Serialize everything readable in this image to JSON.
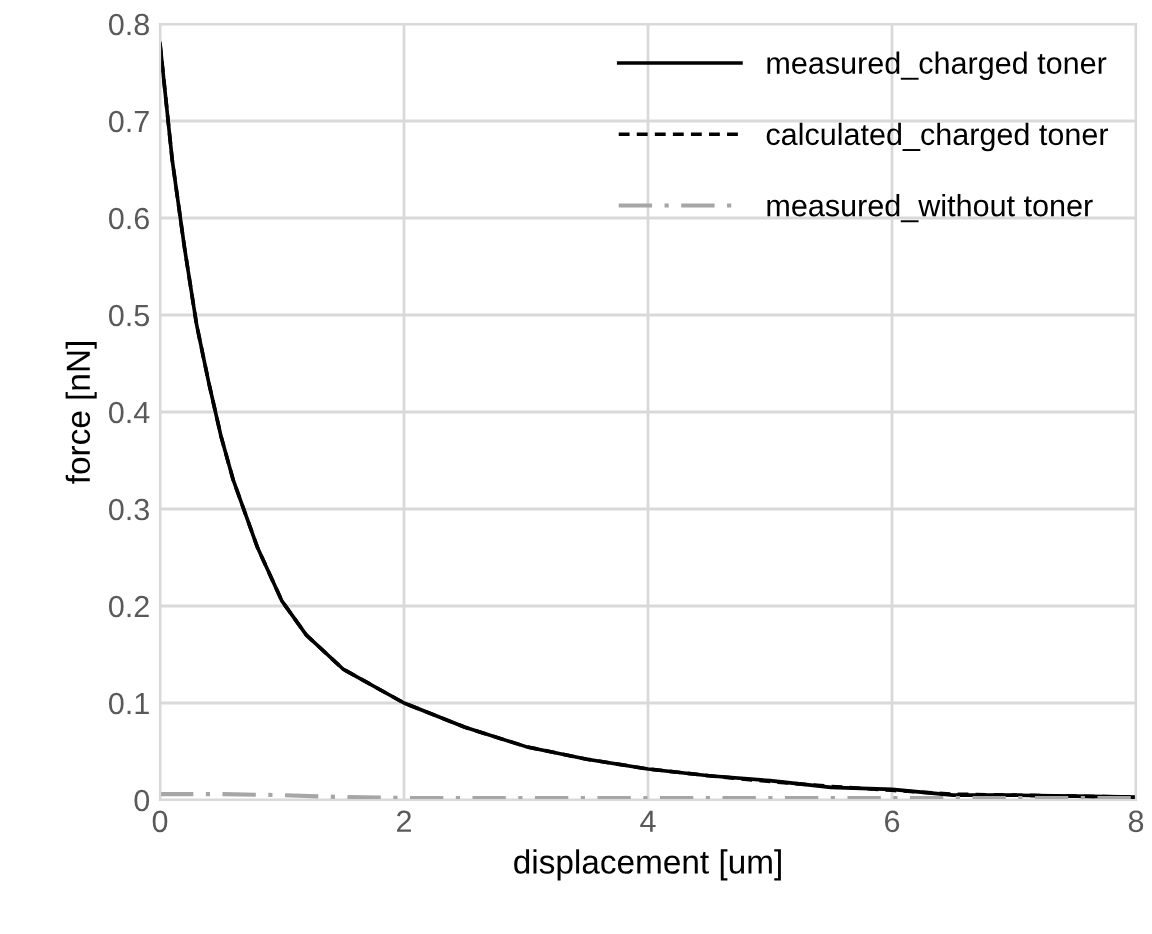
{
  "chart_data": {
    "type": "line",
    "xlabel": "displacement [um]",
    "ylabel": "force [nN]",
    "xlim": [
      0,
      8
    ],
    "ylim": [
      0,
      0.8
    ],
    "xticks": [
      0,
      2,
      4,
      6,
      8
    ],
    "yticks": [
      0,
      0.1,
      0.2,
      0.3,
      0.4,
      0.5,
      0.6,
      0.7,
      0.8
    ],
    "grid": true,
    "legend": "top right",
    "marker": "none",
    "x": [
      0,
      0.1,
      0.2,
      0.3,
      0.4,
      0.5,
      0.6,
      0.7,
      0.8,
      1.0,
      1.2,
      1.5,
      2,
      2.5,
      3,
      3.5,
      4,
      4.5,
      5,
      5.5,
      6,
      6.5,
      7,
      7.5,
      8
    ],
    "series": [
      {
        "name": "measured_charged toner",
        "color": "#000000",
        "line_style": "solid",
        "values": [
          0.78,
          0.66,
          0.57,
          0.49,
          0.43,
          0.375,
          0.33,
          0.295,
          0.26,
          0.205,
          0.17,
          0.135,
          0.1,
          0.075,
          0.055,
          0.042,
          0.032,
          0.025,
          0.02,
          0.013,
          0.011,
          0.005,
          0.005,
          0.004,
          0.003
        ]
      },
      {
        "name": "calculated_charged toner",
        "color": "#000000",
        "line_style": "dashed",
        "values": [
          0.78,
          0.66,
          0.57,
          0.49,
          0.43,
          0.375,
          0.33,
          0.295,
          0.26,
          0.205,
          0.17,
          0.135,
          0.1,
          0.075,
          0.055,
          0.042,
          0.032,
          0.025,
          0.019,
          0.014,
          0.01,
          0.006,
          0.005,
          0.004,
          0.003
        ]
      },
      {
        "name": "measured_without toner",
        "color": "#a6a6a6",
        "line_style": "dashdot",
        "x": [
          0,
          0.5,
          1.0,
          1.5,
          2,
          3,
          4,
          5,
          6,
          7,
          8
        ],
        "values": [
          0.006,
          0.006,
          0.005,
          0.003,
          0.002,
          0.002,
          0.002,
          0.002,
          0.002,
          0.002,
          0.002
        ]
      }
    ]
  }
}
